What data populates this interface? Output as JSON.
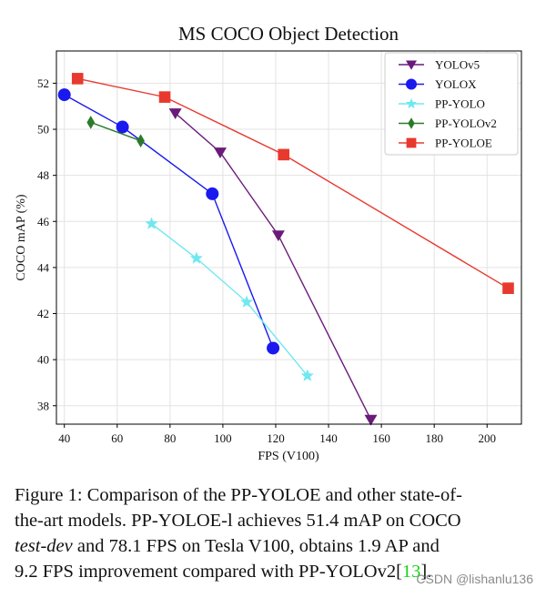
{
  "chart_data": {
    "type": "line",
    "title": "MS COCO Object Detection",
    "xlabel": "FPS (V100)",
    "ylabel": "COCO mAP (%)",
    "xlim": [
      37,
      213
    ],
    "ylim": [
      37.2,
      53.4
    ],
    "xticks": [
      40,
      60,
      80,
      100,
      120,
      140,
      160,
      180,
      200
    ],
    "yticks": [
      38,
      40,
      42,
      44,
      46,
      48,
      50,
      52
    ],
    "grid": true,
    "legend_position": "top-right",
    "series": [
      {
        "name": "YOLOv5",
        "color": "#6a1b7a",
        "marker": "triangle-down",
        "x": [
          82,
          99,
          121,
          156
        ],
        "y": [
          50.7,
          49.0,
          45.4,
          37.4
        ]
      },
      {
        "name": "YOLOX",
        "color": "#1a1aee",
        "marker": "circle",
        "x": [
          40,
          62,
          96,
          119
        ],
        "y": [
          51.5,
          50.1,
          47.2,
          40.5
        ]
      },
      {
        "name": "PP-YOLO",
        "color": "#6fe8f0",
        "marker": "star",
        "x": [
          73,
          90,
          109,
          132
        ],
        "y": [
          45.9,
          44.4,
          42.5,
          39.3
        ]
      },
      {
        "name": "PP-YOLOv2",
        "color": "#2a7a2a",
        "marker": "diamond",
        "x": [
          50,
          68.9
        ],
        "y": [
          50.3,
          49.5
        ]
      },
      {
        "name": "PP-YOLOE",
        "color": "#e8392e",
        "marker": "square",
        "x": [
          45,
          78,
          123,
          208
        ],
        "y": [
          52.2,
          51.4,
          48.9,
          43.1
        ]
      }
    ]
  },
  "caption": {
    "line1": "Figure 1: Comparison of the PP-YOLOE and other state-of-",
    "line2": "the-art models. PP-YOLOE-l achieves 51.4 mAP on COCO",
    "line3_italic": "test-dev",
    "line3_rest": " and 78.1 FPS on Tesla V100, obtains 1.9 AP and",
    "line4_pre": "9.2 FPS improvement compared with PP-YOLOv2[",
    "line4_ref": "13",
    "line4_post": "]."
  },
  "watermark": "CSDN @lishanlu136"
}
